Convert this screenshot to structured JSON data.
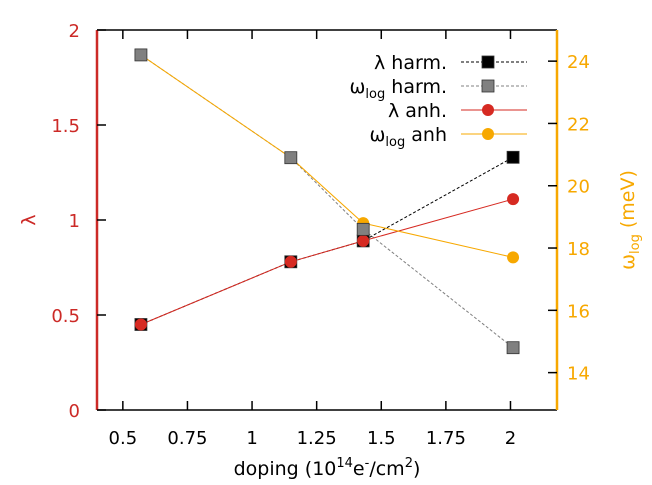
{
  "chart_data": {
    "type": "line",
    "title": "",
    "xlabel": {
      "main": "doping (10",
      "sup1": "14",
      "mid": "e",
      "sup2": "-",
      "end": "/cm",
      "sup3": "2",
      "close": ")"
    },
    "ylabel_left": "λ",
    "ylabel_right": {
      "main": "ω",
      "sub": "log",
      "end": " (meV)"
    },
    "xlim": [
      0.4,
      2.18
    ],
    "ylim_left": [
      0,
      2
    ],
    "ylim_right": [
      12.8,
      25
    ],
    "x_ticks": [
      0.5,
      0.75,
      1,
      1.25,
      1.5,
      1.75,
      2
    ],
    "x_tick_labels": [
      "0.5",
      "0.75",
      "1",
      "1.25",
      "1.5",
      "1.75",
      "2"
    ],
    "y_left_ticks": [
      0,
      0.5,
      1,
      1.5,
      2
    ],
    "y_left_tick_labels": [
      "0",
      "0.5",
      "1",
      "1.5",
      "2"
    ],
    "y_right_ticks": [
      14,
      16,
      18,
      20,
      22,
      24
    ],
    "y_right_tick_labels": [
      "14",
      "16",
      "18",
      "20",
      "22",
      "24"
    ],
    "colors": {
      "left_axis": "#cc2a27",
      "right_axis": "#f7a800",
      "harm_lambda": "#000000",
      "harm_omega": "#808080",
      "anh_lambda": "#d62a22",
      "anh_omega": "#f7a800"
    },
    "series": [
      {
        "key": "lam_harm",
        "name": {
          "main": "λ harm.",
          "sub": "",
          "end": ""
        },
        "axis": "left",
        "marker": "square",
        "line": "dashed",
        "color": "#000000",
        "x": [
          0.57,
          1.15,
          1.43,
          2.01
        ],
        "values": [
          0.45,
          0.78,
          0.89,
          1.33
        ]
      },
      {
        "key": "om_harm",
        "name": {
          "main": "ω",
          "sub": "log",
          "end": " harm."
        },
        "axis": "right",
        "marker": "square",
        "line": "dashed",
        "color": "#808080",
        "x": [
          0.57,
          1.15,
          1.43,
          2.01
        ],
        "values": [
          24.2,
          20.9,
          18.6,
          14.8
        ]
      },
      {
        "key": "lam_anh",
        "name": {
          "main": "λ anh.",
          "sub": "",
          "end": ""
        },
        "axis": "left",
        "marker": "circle",
        "line": "solid",
        "color": "#d62a22",
        "x": [
          0.57,
          1.15,
          1.43,
          2.01
        ],
        "values": [
          0.45,
          0.78,
          0.89,
          1.11
        ]
      },
      {
        "key": "om_anh",
        "name": {
          "main": "ω",
          "sub": "log",
          "end": " anh"
        },
        "axis": "right",
        "marker": "circle",
        "line": "solid",
        "color": "#f7a800",
        "x": [
          0.57,
          1.15,
          1.43,
          2.01
        ],
        "values": [
          24.2,
          20.9,
          18.8,
          17.7
        ]
      }
    ],
    "legend_position": "top-right"
  }
}
